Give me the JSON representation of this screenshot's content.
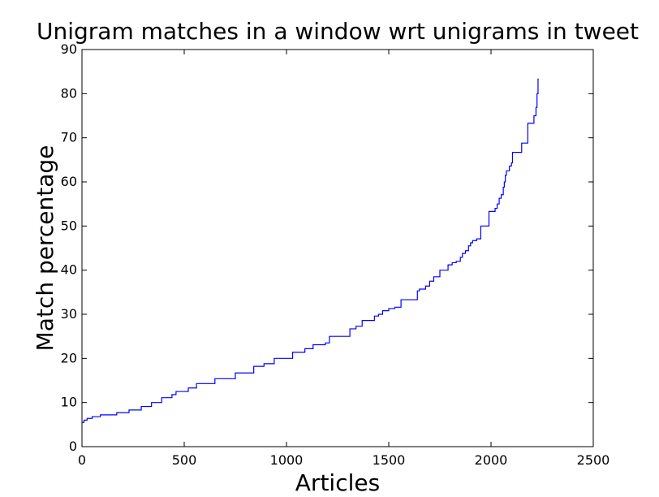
{
  "chart_data": {
    "type": "line",
    "title": "Unigram matches in a window wrt unigrams in tweet",
    "xlabel": "Articles",
    "ylabel": "Match percentage",
    "xlim": [
      0,
      2500
    ],
    "ylim": [
      0,
      90
    ],
    "grid": false,
    "legend": "none",
    "x_ticks": [
      "0",
      "500",
      "1000",
      "1500",
      "2000",
      "2500"
    ],
    "y_ticks": [
      "0",
      "10",
      "20",
      "30",
      "40",
      "50",
      "60",
      "70",
      "80",
      "90"
    ],
    "series": [
      {
        "color": "#0000ff",
        "x": [
          0,
          10,
          25,
          50,
          90,
          170,
          230,
          290,
          340,
          390,
          440,
          460,
          520,
          560,
          650,
          750,
          840,
          890,
          940,
          1030,
          1090,
          1130,
          1190,
          1210,
          1310,
          1340,
          1370,
          1430,
          1450,
          1470,
          1500,
          1530,
          1560,
          1640,
          1650,
          1680,
          1700,
          1720,
          1750,
          1790,
          1810,
          1830,
          1850,
          1860,
          1875,
          1890,
          1900,
          1910,
          1930,
          1950,
          1970,
          1990,
          2020,
          2030,
          2040,
          2050,
          2060,
          2065,
          2070,
          2075,
          2080,
          2090,
          2100,
          2105,
          2110,
          2115,
          2130,
          2150,
          2180,
          2200,
          2210,
          2220,
          2225,
          2230,
          2233
        ],
        "y": [
          5.5,
          6.0,
          6.4,
          6.8,
          7.2,
          7.7,
          8.3,
          9.1,
          10.0,
          11.1,
          11.8,
          12.5,
          13.3,
          14.3,
          15.4,
          16.7,
          18.2,
          18.8,
          20.0,
          21.4,
          22.2,
          23.1,
          23.5,
          25.0,
          26.7,
          27.3,
          28.6,
          29.6,
          30.0,
          30.8,
          31.3,
          31.6,
          33.3,
          35.3,
          35.7,
          36.4,
          37.5,
          38.5,
          40.0,
          41.2,
          41.7,
          42.0,
          42.9,
          43.8,
          44.4,
          45.5,
          46.2,
          46.7,
          47.1,
          50.0,
          50.0,
          53.3,
          54.0,
          55.0,
          56.3,
          57.1,
          58.8,
          60.0,
          61.5,
          62.5,
          62.5,
          63.6,
          64.3,
          66.7,
          66.7,
          66.7,
          66.7,
          68.8,
          73.3,
          73.3,
          75.0,
          76.9,
          80.0,
          83.3,
          83.3
        ]
      }
    ]
  }
}
